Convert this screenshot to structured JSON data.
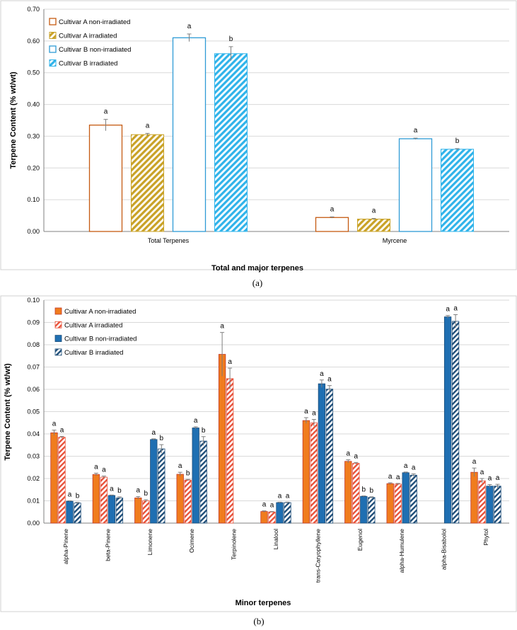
{
  "colors": {
    "a_nonirr": "#c55a11",
    "a_irr": "#c9a227",
    "b_nonirr": "#2e9bd6",
    "b_irr": "#2fb3ea",
    "b_orange": "#f07c1e",
    "b_orange_border": "#c0392b",
    "b_red_hatch": "#e8523a",
    "b_blue": "#1f6fb2",
    "b_blue_dark": "#1f4e79",
    "grid": "#d9d9d9",
    "axis": "#808080"
  },
  "chart_data": [
    {
      "type": "bar",
      "panel_label": "(a)",
      "xlabel": "Total and major terpenes",
      "ylabel": "Terpene Content (% wt/wt)",
      "ylim": [
        0,
        0.7
      ],
      "yticks": [
        "0.00",
        "0.10",
        "0.20",
        "0.30",
        "0.40",
        "0.50",
        "0.60",
        "0.70"
      ],
      "legend_position": "top-left",
      "categories": [
        "Total Terpenes",
        "Myrcene"
      ],
      "series": [
        {
          "name": "Cultivar A non-irradiated",
          "values": [
            0.335,
            0.044
          ],
          "errors": [
            0.018,
            0.002
          ],
          "letters": [
            "a",
            "a"
          ]
        },
        {
          "name": "Cultivar A irradiated",
          "values": [
            0.305,
            0.039
          ],
          "errors": [
            0.004,
            0.002
          ],
          "letters": [
            "a",
            "a"
          ]
        },
        {
          "name": "Cultivar B non-irradiated",
          "values": [
            0.61,
            0.292
          ],
          "errors": [
            0.012,
            0.002
          ],
          "letters": [
            "a",
            "a"
          ]
        },
        {
          "name": "Cultivar B irradiated",
          "values": [
            0.56,
            0.259
          ],
          "errors": [
            0.022,
            0.002
          ],
          "letters": [
            "b",
            "b"
          ]
        }
      ]
    },
    {
      "type": "bar",
      "panel_label": "(b)",
      "xlabel": "Minor terpenes",
      "ylabel": "Terpene Content (% wt/wt)",
      "ylim": [
        0,
        0.1
      ],
      "yticks": [
        "0.00",
        "0.01",
        "0.02",
        "0.03",
        "0.04",
        "0.05",
        "0.06",
        "0.07",
        "0.08",
        "0.09",
        "0.10"
      ],
      "legend_position": "top-left",
      "categories": [
        "alpha-Pinene",
        "beta-Pinene",
        "Limonene",
        "Ocimene",
        "Terpinolene",
        "Linalool",
        "trans-Caryophyllene",
        "Eugenol",
        "alpha-Humulene",
        "alpha-Bisabolol",
        "Phytol"
      ],
      "series": [
        {
          "name": "Cultivar A non-irradiated",
          "values": [
            0.0405,
            0.0218,
            0.0113,
            0.0219,
            0.0757,
            0.0052,
            0.046,
            0.0277,
            0.0177,
            null,
            0.0228
          ],
          "errors": [
            0.0012,
            0.0006,
            0.0006,
            0.0009,
            0.0098,
            0.0003,
            0.0013,
            0.0007,
            0.0004,
            null,
            0.0019
          ],
          "letters": [
            "a",
            "a",
            "a",
            "a",
            "a",
            "a",
            "a",
            "a",
            "a",
            null,
            "a"
          ]
        },
        {
          "name": "Cultivar A irradiated",
          "values": [
            0.0385,
            0.0206,
            0.01,
            0.0193,
            0.0648,
            0.005,
            0.045,
            0.0268,
            0.0175,
            null,
            0.019
          ],
          "errors": [
            0.0004,
            0.0005,
            0.0005,
            0.0003,
            0.0047,
            0.0002,
            0.0015,
            0.0004,
            0.0003,
            null,
            0.001
          ],
          "letters": [
            "a",
            "a",
            "b",
            "b",
            "a",
            "a",
            "a",
            "a",
            "a",
            null,
            "a"
          ]
        },
        {
          "name": "Cultivar B non-irradiated",
          "values": [
            0.0098,
            0.0124,
            0.0375,
            0.0427,
            null,
            0.0092,
            0.0625,
            0.012,
            0.0226,
            0.0925,
            0.0166
          ],
          "errors": [
            0.0002,
            0.0002,
            0.0003,
            0.0005,
            null,
            0.0002,
            0.0017,
            0.0002,
            0.0003,
            0.0006,
            0.0007
          ],
          "letters": [
            "a",
            "a",
            "a",
            "a",
            null,
            "a",
            "a",
            "b",
            "a",
            "a",
            "a"
          ]
        },
        {
          "name": "Cultivar B irradiated",
          "values": [
            0.009,
            0.0113,
            0.0333,
            0.0368,
            null,
            0.0092,
            0.0601,
            0.0115,
            0.0215,
            0.0905,
            0.0166
          ],
          "errors": [
            0.0003,
            0.0005,
            0.0019,
            0.002,
            null,
            0.0002,
            0.0016,
            0.0003,
            0.0006,
            0.003,
            0.0008
          ],
          "letters": [
            "b",
            "b",
            "b",
            "b",
            null,
            "a",
            "a",
            "b",
            "a",
            "a",
            "a"
          ]
        }
      ]
    }
  ]
}
